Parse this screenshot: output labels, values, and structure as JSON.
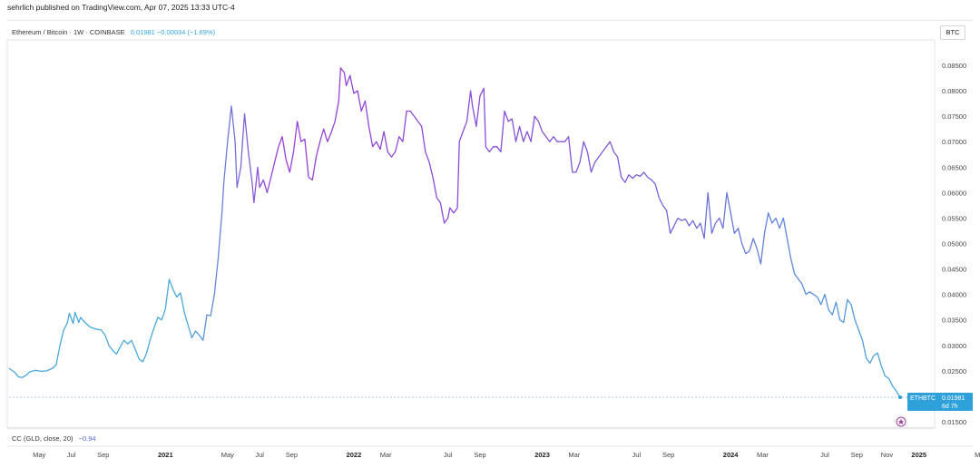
{
  "header": {
    "published_line": "sehrlich published on TradingView.com, Apr 07, 2025 13:33 UTC-4",
    "legend_title": "Ethereum / Bitcoin · 1W · COINBASE",
    "legend_values": "0.01981 −0.00034 (−1.69%)",
    "scale_badge": "BTC"
  },
  "indicator": {
    "label": "CC (GLD, close, 20)",
    "value": "−0.94"
  },
  "last_price": {
    "symbol": "ETHBTC",
    "price": "0.01981",
    "countdown": "6d 7h"
  },
  "colors": {
    "gradient_start": "#4aa8dc",
    "gradient_end": "#9b3fd6",
    "last_label_bg": "#2fa1da",
    "marker": "#a23fa0"
  },
  "chart_data": {
    "type": "line",
    "title": "",
    "xlabel": "",
    "ylabel": "",
    "ylim": [
      0.0136,
      0.0882
    ],
    "y_ticks": [
      "0.08500",
      "0.08000",
      "0.07500",
      "0.07000",
      "0.06500",
      "0.06000",
      "0.05500",
      "0.05000",
      "0.04500",
      "0.04000",
      "0.03500",
      "0.03000",
      "0.02500",
      "0.01500"
    ],
    "x_ticks": [
      {
        "label": "May",
        "t": 2020.33,
        "bold": false
      },
      {
        "label": "Jul",
        "t": 2020.5,
        "bold": false
      },
      {
        "label": "Sep",
        "t": 2020.67,
        "bold": false
      },
      {
        "label": "2021",
        "t": 2021.0,
        "bold": true
      },
      {
        "label": "May",
        "t": 2021.33,
        "bold": false
      },
      {
        "label": "Jul",
        "t": 2021.5,
        "bold": false
      },
      {
        "label": "Sep",
        "t": 2021.67,
        "bold": false
      },
      {
        "label": "2022",
        "t": 2022.0,
        "bold": true
      },
      {
        "label": "Mar",
        "t": 2022.17,
        "bold": false
      },
      {
        "label": "Jul",
        "t": 2022.5,
        "bold": false
      },
      {
        "label": "Sep",
        "t": 2022.67,
        "bold": false
      },
      {
        "label": "2023",
        "t": 2023.0,
        "bold": true
      },
      {
        "label": "Mar",
        "t": 2023.17,
        "bold": false
      },
      {
        "label": "Jul",
        "t": 2023.5,
        "bold": false
      },
      {
        "label": "Sep",
        "t": 2023.67,
        "bold": false
      },
      {
        "label": "2024",
        "t": 2024.0,
        "bold": true
      },
      {
        "label": "Mar",
        "t": 2024.17,
        "bold": false
      },
      {
        "label": "Jul",
        "t": 2024.5,
        "bold": false
      },
      {
        "label": "Sep",
        "t": 2024.67,
        "bold": false
      },
      {
        "label": "Nov",
        "t": 2024.83,
        "bold": false
      },
      {
        "label": "2025",
        "t": 2025.0,
        "bold": true
      },
      {
        "label": "May",
        "t": 2025.33,
        "bold": false
      }
    ],
    "series": [
      {
        "points": [
          [
            2020.17,
            0.0255
          ],
          [
            2020.2,
            0.0247
          ],
          [
            2020.22,
            0.0238
          ],
          [
            2020.24,
            0.0237
          ],
          [
            2020.26,
            0.0241
          ],
          [
            2020.28,
            0.0248
          ],
          [
            2020.31,
            0.0251
          ],
          [
            2020.34,
            0.0249
          ],
          [
            2020.37,
            0.025
          ],
          [
            2020.4,
            0.0255
          ],
          [
            2020.42,
            0.0262
          ],
          [
            2020.44,
            0.03
          ],
          [
            2020.46,
            0.033
          ],
          [
            2020.48,
            0.0345
          ],
          [
            2020.49,
            0.0363
          ],
          [
            2020.51,
            0.0343
          ],
          [
            2020.52,
            0.0365
          ],
          [
            2020.54,
            0.0345
          ],
          [
            2020.55,
            0.0355
          ],
          [
            2020.57,
            0.0346
          ],
          [
            2020.6,
            0.0336
          ],
          [
            2020.63,
            0.0332
          ],
          [
            2020.66,
            0.033
          ],
          [
            2020.68,
            0.032
          ],
          [
            2020.7,
            0.03
          ],
          [
            2020.72,
            0.029
          ],
          [
            2020.74,
            0.0283
          ],
          [
            2020.76,
            0.0297
          ],
          [
            2020.78,
            0.031
          ],
          [
            2020.8,
            0.0303
          ],
          [
            2020.82,
            0.031
          ],
          [
            2020.84,
            0.0292
          ],
          [
            2020.86,
            0.0273
          ],
          [
            2020.88,
            0.0268
          ],
          [
            2020.9,
            0.0285
          ],
          [
            2020.92,
            0.0312
          ],
          [
            2020.94,
            0.0335
          ],
          [
            2020.96,
            0.0355
          ],
          [
            2020.98,
            0.035
          ],
          [
            2021.0,
            0.0372
          ],
          [
            2021.02,
            0.043
          ],
          [
            2021.04,
            0.041
          ],
          [
            2021.06,
            0.0395
          ],
          [
            2021.08,
            0.0403
          ],
          [
            2021.1,
            0.0365
          ],
          [
            2021.12,
            0.034
          ],
          [
            2021.14,
            0.0315
          ],
          [
            2021.16,
            0.0328
          ],
          [
            2021.18,
            0.032
          ],
          [
            2021.2,
            0.031
          ],
          [
            2021.22,
            0.036
          ],
          [
            2021.24,
            0.0358
          ],
          [
            2021.26,
            0.04
          ],
          [
            2021.28,
            0.047
          ],
          [
            2021.3,
            0.056
          ],
          [
            2021.31,
            0.062
          ],
          [
            2021.33,
            0.07
          ],
          [
            2021.35,
            0.077
          ],
          [
            2021.37,
            0.07
          ],
          [
            2021.38,
            0.061
          ],
          [
            2021.4,
            0.065
          ],
          [
            2021.42,
            0.0755
          ],
          [
            2021.44,
            0.068
          ],
          [
            2021.46,
            0.062
          ],
          [
            2021.47,
            0.058
          ],
          [
            2021.49,
            0.065
          ],
          [
            2021.5,
            0.061
          ],
          [
            2021.52,
            0.0625
          ],
          [
            2021.54,
            0.06
          ],
          [
            2021.56,
            0.063
          ],
          [
            2021.58,
            0.066
          ],
          [
            2021.6,
            0.069
          ],
          [
            2021.62,
            0.071
          ],
          [
            2021.64,
            0.0665
          ],
          [
            2021.66,
            0.064
          ],
          [
            2021.68,
            0.068
          ],
          [
            2021.7,
            0.074
          ],
          [
            2021.72,
            0.07
          ],
          [
            2021.74,
            0.0705
          ],
          [
            2021.76,
            0.063
          ],
          [
            2021.78,
            0.0625
          ],
          [
            2021.8,
            0.067
          ],
          [
            2021.82,
            0.07
          ],
          [
            2021.84,
            0.0725
          ],
          [
            2021.86,
            0.07
          ],
          [
            2021.88,
            0.0718
          ],
          [
            2021.9,
            0.074
          ],
          [
            2021.92,
            0.078
          ],
          [
            2021.93,
            0.0845
          ],
          [
            2021.95,
            0.0835
          ],
          [
            2021.96,
            0.081
          ],
          [
            2021.98,
            0.083
          ],
          [
            2022.0,
            0.0795
          ],
          [
            2022.02,
            0.08
          ],
          [
            2022.04,
            0.076
          ],
          [
            2022.06,
            0.078
          ],
          [
            2022.08,
            0.073
          ],
          [
            2022.1,
            0.069
          ],
          [
            2022.12,
            0.07
          ],
          [
            2022.14,
            0.0685
          ],
          [
            2022.16,
            0.072
          ],
          [
            2022.18,
            0.068
          ],
          [
            2022.2,
            0.067
          ],
          [
            2022.22,
            0.068
          ],
          [
            2022.24,
            0.071
          ],
          [
            2022.26,
            0.07
          ],
          [
            2022.28,
            0.076
          ],
          [
            2022.3,
            0.076
          ],
          [
            2022.32,
            0.075
          ],
          [
            2022.34,
            0.074
          ],
          [
            2022.36,
            0.073
          ],
          [
            2022.38,
            0.068
          ],
          [
            2022.4,
            0.066
          ],
          [
            2022.42,
            0.063
          ],
          [
            2022.44,
            0.059
          ],
          [
            2022.46,
            0.058
          ],
          [
            2022.48,
            0.054
          ],
          [
            2022.5,
            0.055
          ],
          [
            2022.51,
            0.057
          ],
          [
            2022.53,
            0.056
          ],
          [
            2022.55,
            0.057
          ],
          [
            2022.56,
            0.07
          ],
          [
            2022.58,
            0.072
          ],
          [
            2022.6,
            0.074
          ],
          [
            2022.62,
            0.08
          ],
          [
            2022.63,
            0.077
          ],
          [
            2022.65,
            0.073
          ],
          [
            2022.67,
            0.079
          ],
          [
            2022.69,
            0.0805
          ],
          [
            2022.7,
            0.069
          ],
          [
            2022.72,
            0.068
          ],
          [
            2022.74,
            0.069
          ],
          [
            2022.76,
            0.069
          ],
          [
            2022.78,
            0.068
          ],
          [
            2022.8,
            0.076
          ],
          [
            2022.82,
            0.074
          ],
          [
            2022.84,
            0.0745
          ],
          [
            2022.86,
            0.07
          ],
          [
            2022.88,
            0.073
          ],
          [
            2022.9,
            0.07
          ],
          [
            2022.92,
            0.072
          ],
          [
            2022.94,
            0.07
          ],
          [
            2022.96,
            0.075
          ],
          [
            2022.98,
            0.074
          ],
          [
            2023.0,
            0.072
          ],
          [
            2023.02,
            0.071
          ],
          [
            2023.04,
            0.07
          ],
          [
            2023.06,
            0.071
          ],
          [
            2023.08,
            0.07
          ],
          [
            2023.1,
            0.07
          ],
          [
            2023.12,
            0.07
          ],
          [
            2023.14,
            0.071
          ],
          [
            2023.16,
            0.064
          ],
          [
            2023.18,
            0.064
          ],
          [
            2023.2,
            0.066
          ],
          [
            2023.22,
            0.07
          ],
          [
            2023.24,
            0.068
          ],
          [
            2023.26,
            0.064
          ],
          [
            2023.28,
            0.066
          ],
          [
            2023.3,
            0.067
          ],
          [
            2023.32,
            0.068
          ],
          [
            2023.34,
            0.069
          ],
          [
            2023.36,
            0.07
          ],
          [
            2023.38,
            0.068
          ],
          [
            2023.4,
            0.067
          ],
          [
            2023.42,
            0.063
          ],
          [
            2023.44,
            0.062
          ],
          [
            2023.46,
            0.0635
          ],
          [
            2023.48,
            0.0628
          ],
          [
            2023.5,
            0.0635
          ],
          [
            2023.52,
            0.0632
          ],
          [
            2023.54,
            0.064
          ],
          [
            2023.56,
            0.063
          ],
          [
            2023.58,
            0.0625
          ],
          [
            2023.6,
            0.0617
          ],
          [
            2023.62,
            0.059
          ],
          [
            2023.64,
            0.0575
          ],
          [
            2023.66,
            0.0565
          ],
          [
            2023.68,
            0.052
          ],
          [
            2023.7,
            0.0535
          ],
          [
            2023.72,
            0.055
          ],
          [
            2023.74,
            0.0545
          ],
          [
            2023.76,
            0.0548
          ],
          [
            2023.78,
            0.0535
          ],
          [
            2023.8,
            0.0545
          ],
          [
            2023.82,
            0.053
          ],
          [
            2023.84,
            0.054
          ],
          [
            2023.86,
            0.051
          ],
          [
            2023.88,
            0.06
          ],
          [
            2023.9,
            0.052
          ],
          [
            2023.92,
            0.054
          ],
          [
            2023.94,
            0.055
          ],
          [
            2023.96,
            0.053
          ],
          [
            2023.98,
            0.06
          ],
          [
            2024.0,
            0.056
          ],
          [
            2024.02,
            0.052
          ],
          [
            2024.04,
            0.053
          ],
          [
            2024.06,
            0.05
          ],
          [
            2024.08,
            0.048
          ],
          [
            2024.1,
            0.0485
          ],
          [
            2024.12,
            0.051
          ],
          [
            2024.14,
            0.049
          ],
          [
            2024.16,
            0.046
          ],
          [
            2024.18,
            0.052
          ],
          [
            2024.2,
            0.056
          ],
          [
            2024.22,
            0.054
          ],
          [
            2024.24,
            0.055
          ],
          [
            2024.26,
            0.053
          ],
          [
            2024.28,
            0.055
          ],
          [
            2024.3,
            0.051
          ],
          [
            2024.32,
            0.047
          ],
          [
            2024.34,
            0.044
          ],
          [
            2024.36,
            0.043
          ],
          [
            2024.38,
            0.042
          ],
          [
            2024.4,
            0.04
          ],
          [
            2024.42,
            0.0405
          ],
          [
            2024.44,
            0.04
          ],
          [
            2024.46,
            0.0395
          ],
          [
            2024.48,
            0.038
          ],
          [
            2024.5,
            0.04
          ],
          [
            2024.52,
            0.037
          ],
          [
            2024.54,
            0.036
          ],
          [
            2024.56,
            0.0385
          ],
          [
            2024.58,
            0.035
          ],
          [
            2024.6,
            0.0345
          ],
          [
            2024.62,
            0.039
          ],
          [
            2024.64,
            0.038
          ],
          [
            2024.66,
            0.035
          ],
          [
            2024.68,
            0.033
          ],
          [
            2024.7,
            0.031
          ],
          [
            2024.72,
            0.0275
          ],
          [
            2024.74,
            0.0265
          ],
          [
            2024.76,
            0.028
          ],
          [
            2024.78,
            0.0285
          ],
          [
            2024.8,
            0.026
          ],
          [
            2024.82,
            0.024
          ],
          [
            2024.84,
            0.0235
          ],
          [
            2024.86,
            0.022
          ],
          [
            2024.88,
            0.021
          ],
          [
            2024.9,
            0.0198
          ]
        ]
      }
    ],
    "grid": false,
    "legend": "top-left"
  }
}
